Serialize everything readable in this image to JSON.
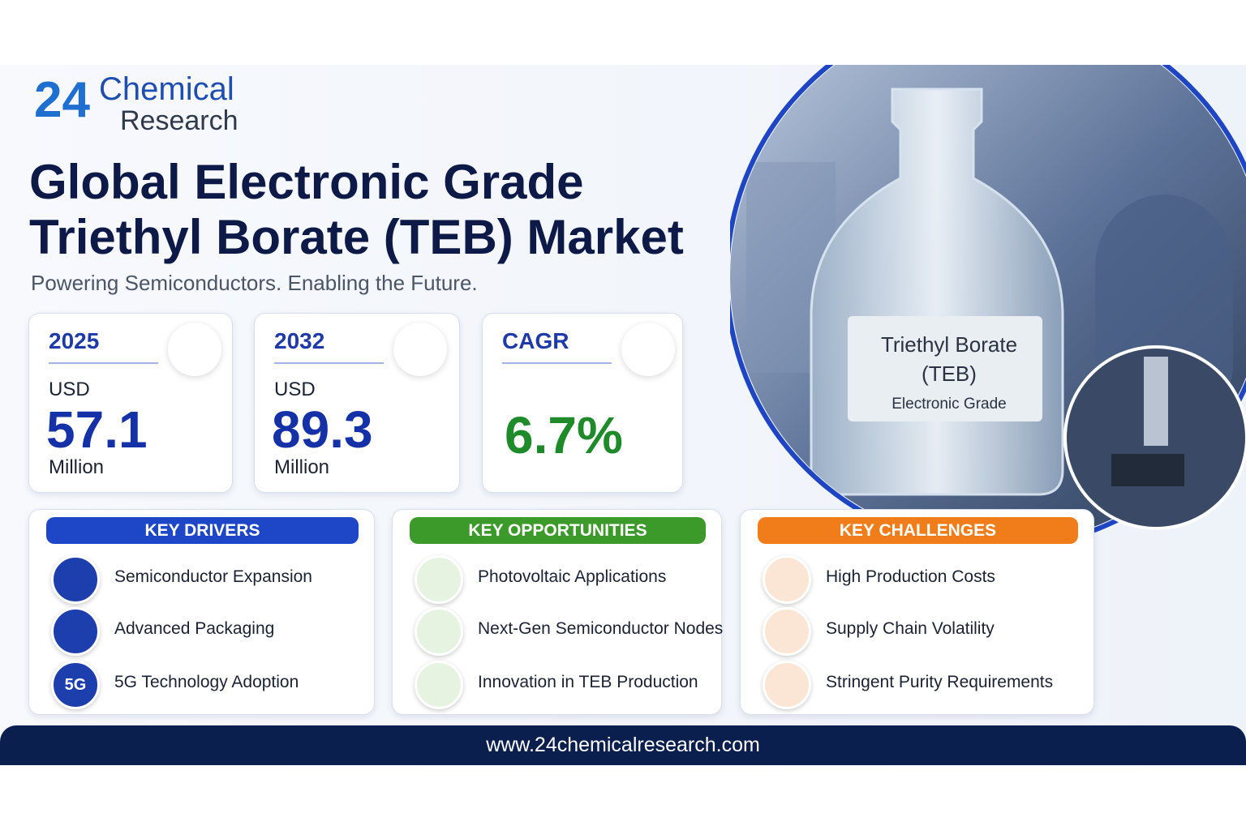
{
  "logo": {
    "number": "24",
    "line1": "Chemical",
    "line2": "Research"
  },
  "header": {
    "title_line1": "Global Electronic Grade",
    "title_line2": "Triethyl Borate (TEB) Market",
    "subtitle": "Powering Semiconductors. Enabling the Future."
  },
  "stats": [
    {
      "label": "2025",
      "prefix": "USD",
      "value": "57.1",
      "unit": "Million"
    },
    {
      "label": "2032",
      "prefix": "USD",
      "value": "89.3",
      "unit": "Million"
    },
    {
      "label": "CAGR",
      "value": "6.7%"
    }
  ],
  "sections": [
    {
      "heading": "KEY DRIVERS",
      "items": [
        {
          "text": "Semiconductor Expansion"
        },
        {
          "text": "Advanced Packaging"
        },
        {
          "text": "5G Technology Adoption",
          "icon_label": "5G"
        }
      ]
    },
    {
      "heading": "KEY OPPORTUNITIES",
      "items": [
        {
          "text": "Photovoltaic Applications"
        },
        {
          "text": "Next-Gen Semiconductor Nodes"
        },
        {
          "text": "Innovation in TEB Production"
        }
      ]
    },
    {
      "heading": "KEY CHALLENGES",
      "items": [
        {
          "text": "High Production Costs"
        },
        {
          "text": "Supply Chain Volatility"
        },
        {
          "text": "Stringent Purity Requirements"
        }
      ]
    }
  ],
  "image_label": {
    "line1": "Triethyl Borate",
    "line2": "(TEB)",
    "line3": "Electronic Grade"
  },
  "footer": {
    "url": "www.24chemicalresearch.com"
  }
}
